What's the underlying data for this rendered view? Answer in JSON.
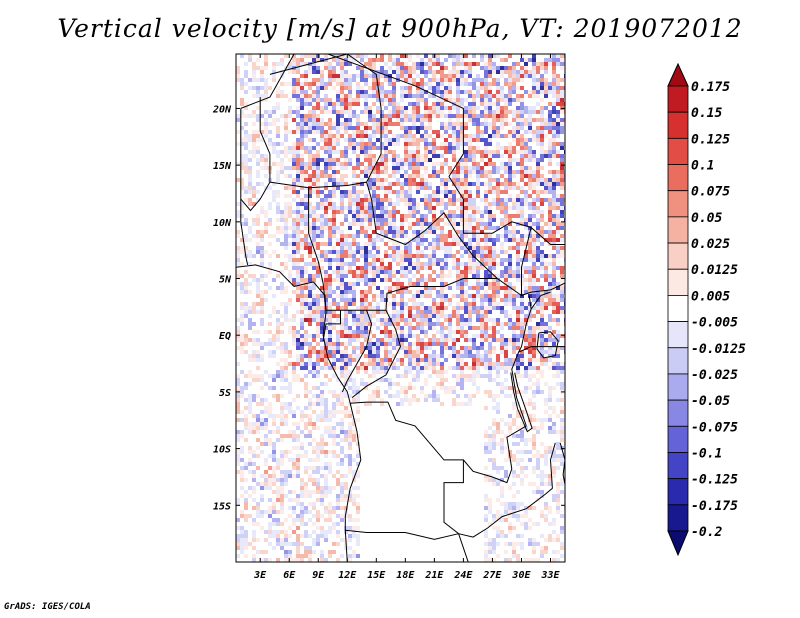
{
  "chart_data": {
    "type": "heatmap",
    "title": "Vertical velocity [m/s] at 900hPa, VT: 2019072012",
    "variable": "Vertical velocity",
    "units": "m/s",
    "level": "900hPa",
    "valid_time": "2019072012",
    "x_ticks": [
      "3E",
      "6E",
      "9E",
      "12E",
      "15E",
      "18E",
      "21E",
      "24E",
      "27E",
      "30E",
      "33E"
    ],
    "x_tick_values": [
      3,
      6,
      9,
      12,
      15,
      18,
      21,
      24,
      27,
      30,
      33
    ],
    "y_ticks": [
      "20N",
      "15N",
      "10N",
      "5N",
      "EQ",
      "5S",
      "10S",
      "15S"
    ],
    "y_tick_values": [
      20,
      15,
      10,
      5,
      0,
      -5,
      -10,
      -15
    ],
    "xlim": [
      0.5,
      34.5
    ],
    "ylim": [
      -20,
      24.8
    ],
    "colorbar": {
      "labels": [
        "0.175",
        "0.15",
        "0.125",
        "0.1",
        "0.075",
        "0.05",
        "0.025",
        "0.0125",
        "0.005",
        "-0.005",
        "-0.0125",
        "-0.025",
        "-0.05",
        "-0.075",
        "-0.1",
        "-0.125",
        "-0.175",
        "-0.2"
      ],
      "colors": [
        "#a10a12",
        "#c01b22",
        "#d6302f",
        "#e24d45",
        "#ea6e60",
        "#f0907f",
        "#f5b2a3",
        "#f9d0c6",
        "#fce9e3",
        "#ffffff",
        "#e6e6fb",
        "#cbccf5",
        "#aaabee",
        "#8888e4",
        "#6464d8",
        "#4444c6",
        "#2a2aae",
        "#18188f",
        "#0c0c70"
      ]
    }
  },
  "footer": {
    "credit": "GrADS: IGES/COLA"
  }
}
